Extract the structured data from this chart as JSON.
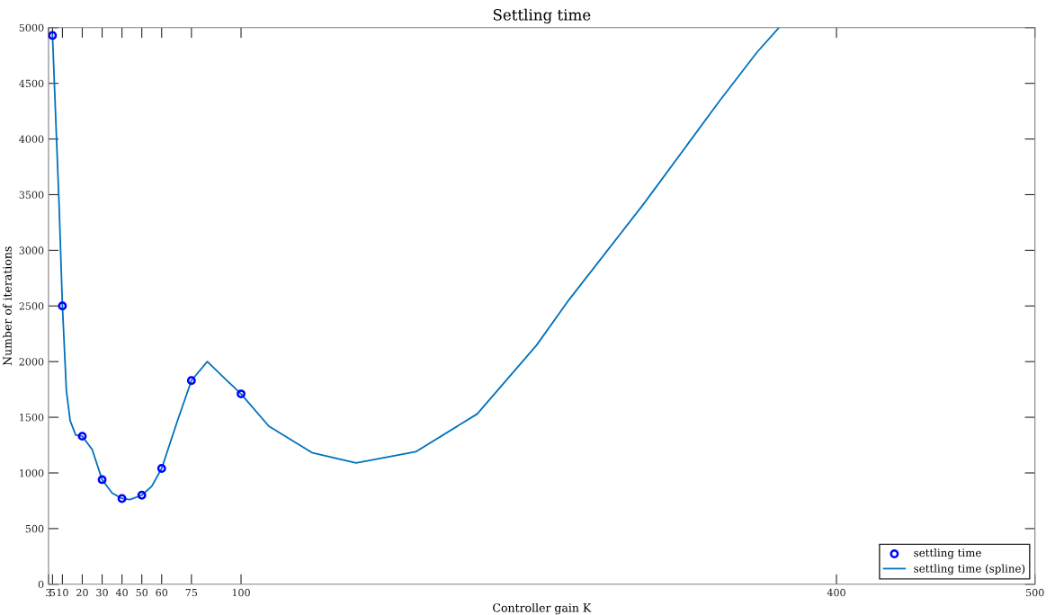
{
  "chart_data": {
    "type": "line",
    "title": "Settling time",
    "xlabel": "Controller gain K",
    "ylabel": "Number of iterations",
    "xlim": [
      3,
      500
    ],
    "xticks": [
      3,
      5,
      10,
      20,
      30,
      40,
      50,
      60,
      75,
      100,
      400,
      500
    ],
    "ylim": [
      0,
      5000
    ],
    "yticks": [
      0,
      500,
      1000,
      1500,
      2000,
      2500,
      3000,
      3500,
      4000,
      4500,
      5000
    ],
    "grid": false,
    "legend": "bottom right",
    "series": [
      {
        "name": "settling time",
        "type": "scatter",
        "marker": "circle",
        "color": "#0000ff",
        "x": [
          5,
          10,
          20,
          30,
          40,
          50,
          60,
          75,
          100
        ],
        "values": [
          4930,
          2500,
          1330,
          940,
          770,
          800,
          1040,
          1830,
          1710
        ]
      },
      {
        "name": "settling time (spline)",
        "marker": "none",
        "line_style": "solid",
        "color": "#0072bd",
        "x": [
          5,
          8.3,
          10,
          12,
          13.9,
          16.7,
          20,
          25,
          30,
          35,
          40,
          44,
          50,
          55,
          60,
          68,
          75,
          83,
          90,
          100,
          114,
          136,
          158,
          188,
          219,
          249,
          265,
          303,
          341,
          360,
          371
        ],
        "values": [
          4930,
          3420,
          2500,
          1740,
          1470,
          1340,
          1330,
          1210,
          940,
          820,
          770,
          760,
          800,
          880,
          1040,
          1470,
          1830,
          2000,
          1880,
          1710,
          1420,
          1180,
          1090,
          1190,
          1530,
          2150,
          2550,
          3420,
          4340,
          4780,
          5000
        ]
      }
    ]
  }
}
